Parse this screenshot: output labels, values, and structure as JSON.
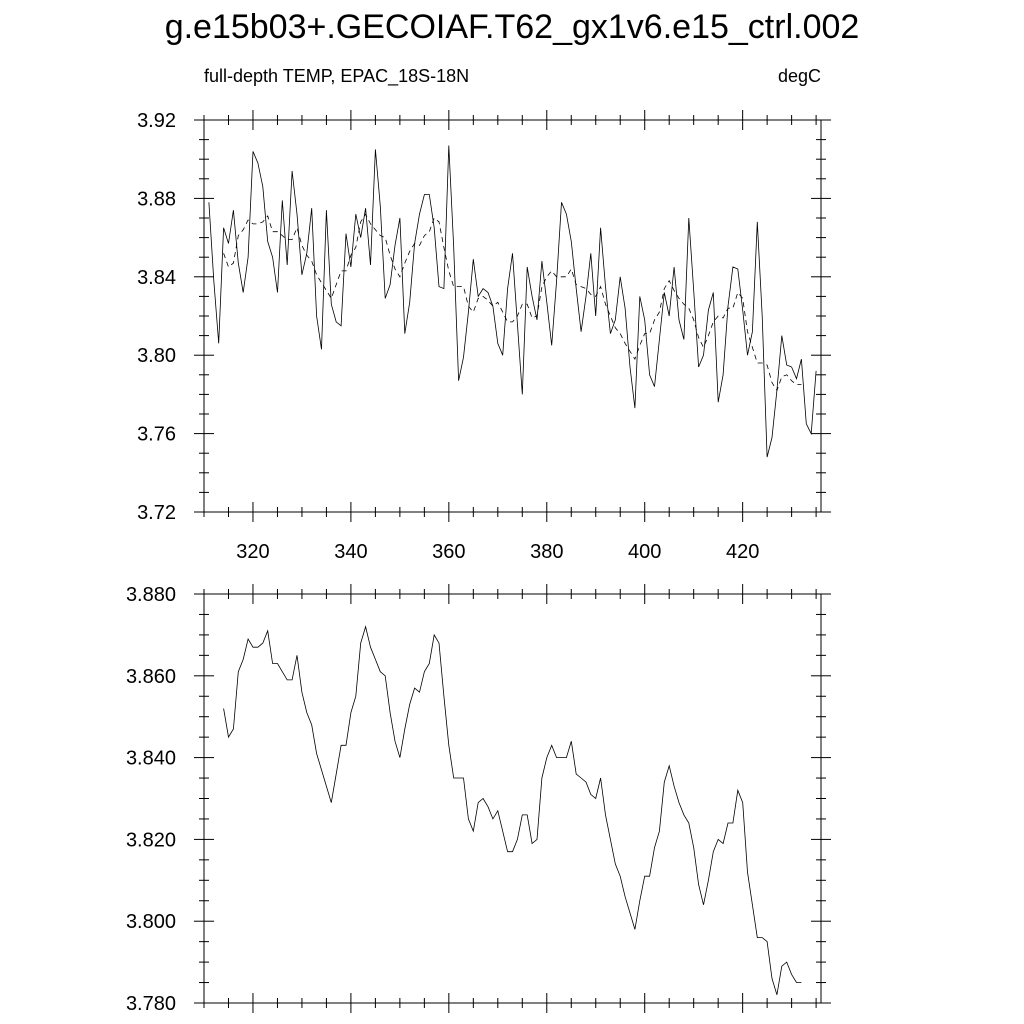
{
  "title": "g.e15b03+.GECOIAF.T62_gx1v6.e15_ctrl.002",
  "chart_data": [
    {
      "type": "line",
      "title": "",
      "subtitle_left": "full-depth TEMP, EPAC_18S-18N",
      "subtitle_right": "degC",
      "xlim": [
        310,
        436
      ],
      "ylim": [
        3.72,
        3.92
      ],
      "xticks": [
        320,
        340,
        360,
        380,
        400,
        420
      ],
      "xtick_labels": [
        "320",
        "340",
        "360",
        "380",
        "400",
        "420"
      ],
      "yticks": [
        3.72,
        3.76,
        3.8,
        3.84,
        3.88,
        3.92
      ],
      "ytick_labels": [
        "3.72",
        "3.76",
        "3.80",
        "3.84",
        "3.88",
        "3.92"
      ],
      "series": [
        {
          "style": "solid",
          "x": [
            311,
            312,
            313,
            314,
            315,
            316,
            317,
            318,
            319,
            320,
            321,
            322,
            323,
            324,
            325,
            326,
            327,
            328,
            329,
            330,
            331,
            332,
            333,
            334,
            335,
            336,
            337,
            338,
            339,
            340,
            341,
            342,
            343,
            344,
            345,
            346,
            347,
            348,
            349,
            350,
            351,
            352,
            353,
            354,
            355,
            356,
            357,
            358,
            359,
            360,
            361,
            362,
            363,
            364,
            365,
            366,
            367,
            368,
            369,
            370,
            371,
            372,
            373,
            374,
            375,
            376,
            377,
            378,
            379,
            380,
            381,
            382,
            383,
            384,
            385,
            386,
            387,
            388,
            389,
            390,
            391,
            392,
            393,
            394,
            395,
            396,
            397,
            398,
            399,
            400,
            401,
            402,
            403,
            404,
            405,
            406,
            407,
            408,
            409,
            410,
            411,
            412,
            413,
            414,
            415,
            416,
            417,
            418,
            419,
            420,
            421,
            422,
            423,
            424,
            425,
            426,
            427,
            428,
            429,
            430,
            431,
            432,
            433,
            434,
            435
          ],
          "y": [
            3.878,
            3.838,
            3.806,
            3.865,
            3.857,
            3.874,
            3.847,
            3.832,
            3.85,
            3.904,
            3.898,
            3.886,
            3.858,
            3.85,
            3.832,
            3.879,
            3.846,
            3.894,
            3.872,
            3.841,
            3.852,
            3.875,
            3.82,
            3.803,
            3.874,
            3.826,
            3.817,
            3.815,
            3.862,
            3.845,
            3.872,
            3.86,
            3.875,
            3.846,
            3.905,
            3.876,
            3.829,
            3.836,
            3.856,
            3.87,
            3.811,
            3.827,
            3.857,
            3.872,
            3.882,
            3.882,
            3.865,
            3.835,
            3.834,
            3.907,
            3.855,
            3.787,
            3.799,
            3.822,
            3.849,
            3.83,
            3.834,
            3.832,
            3.825,
            3.806,
            3.8,
            3.834,
            3.852,
            3.816,
            3.78,
            3.845,
            3.83,
            3.818,
            3.848,
            3.827,
            3.805,
            3.838,
            3.878,
            3.872,
            3.858,
            3.834,
            3.812,
            3.83,
            3.852,
            3.82,
            3.865,
            3.835,
            3.811,
            3.818,
            3.84,
            3.824,
            3.794,
            3.773,
            3.83,
            3.818,
            3.79,
            3.784,
            3.808,
            3.832,
            3.82,
            3.845,
            3.818,
            3.808,
            3.87,
            3.833,
            3.794,
            3.8,
            3.823,
            3.832,
            3.776,
            3.79,
            3.825,
            3.845,
            3.844,
            3.823,
            3.8,
            3.812,
            3.868,
            3.82,
            3.748,
            3.758,
            3.782,
            3.81,
            3.795,
            3.794,
            3.788,
            3.798,
            3.765,
            3.76,
            3.792
          ]
        },
        {
          "style": "dashed",
          "x": [
            314,
            315,
            316,
            317,
            318,
            319,
            320,
            321,
            322,
            323,
            324,
            325,
            326,
            327,
            328,
            329,
            330,
            331,
            332,
            333,
            334,
            335,
            336,
            337,
            338,
            339,
            340,
            341,
            342,
            343,
            344,
            345,
            346,
            347,
            348,
            349,
            350,
            351,
            352,
            353,
            354,
            355,
            356,
            357,
            358,
            359,
            360,
            361,
            362,
            363,
            364,
            365,
            366,
            367,
            368,
            369,
            370,
            371,
            372,
            373,
            374,
            375,
            376,
            377,
            378,
            379,
            380,
            381,
            382,
            383,
            384,
            385,
            386,
            387,
            388,
            389,
            390,
            391,
            392,
            393,
            394,
            395,
            396,
            397,
            398,
            399,
            400,
            401,
            402,
            403,
            404,
            405,
            406,
            407,
            408,
            409,
            410,
            411,
            412,
            413,
            414,
            415,
            416,
            417,
            418,
            419,
            420,
            421,
            422,
            423,
            424,
            425,
            426,
            427,
            428,
            429,
            430,
            431,
            432
          ],
          "y": [
            3.852,
            3.845,
            3.847,
            3.861,
            3.864,
            3.869,
            3.867,
            3.867,
            3.868,
            3.871,
            3.863,
            3.863,
            3.861,
            3.859,
            3.859,
            3.865,
            3.856,
            3.851,
            3.848,
            3.841,
            3.837,
            3.833,
            3.829,
            3.836,
            3.843,
            3.843,
            3.851,
            3.855,
            3.868,
            3.872,
            3.867,
            3.864,
            3.861,
            3.86,
            3.851,
            3.844,
            3.84,
            3.847,
            3.853,
            3.857,
            3.856,
            3.861,
            3.863,
            3.87,
            3.868,
            3.855,
            3.843,
            3.835,
            3.835,
            3.835,
            3.825,
            3.822,
            3.829,
            3.83,
            3.828,
            3.825,
            3.827,
            3.822,
            3.817,
            3.817,
            3.82,
            3.826,
            3.826,
            3.819,
            3.82,
            3.835,
            3.84,
            3.843,
            3.84,
            3.84,
            3.84,
            3.844,
            3.836,
            3.835,
            3.834,
            3.831,
            3.83,
            3.835,
            3.826,
            3.82,
            3.814,
            3.811,
            3.806,
            3.802,
            3.798,
            3.805,
            3.811,
            3.811,
            3.818,
            3.822,
            3.834,
            3.838,
            3.833,
            3.829,
            3.826,
            3.824,
            3.818,
            3.809,
            3.804,
            3.81,
            3.817,
            3.82,
            3.819,
            3.824,
            3.824,
            3.832,
            3.829,
            3.812,
            3.804,
            3.796,
            3.796,
            3.795,
            3.786,
            3.782,
            3.789,
            3.79,
            3.787,
            3.785,
            3.785
          ]
        }
      ]
    },
    {
      "type": "line",
      "title": "",
      "xlim": [
        310,
        436
      ],
      "ylim": [
        3.78,
        3.88
      ],
      "xticks": [
        320,
        340,
        360,
        380,
        400,
        420
      ],
      "yticks": [
        3.78,
        3.8,
        3.82,
        3.84,
        3.86,
        3.88
      ],
      "ytick_labels": [
        "3.780",
        "3.800",
        "3.820",
        "3.840",
        "3.860",
        "3.880"
      ],
      "series": [
        {
          "style": "solid",
          "x": [
            314,
            315,
            316,
            317,
            318,
            319,
            320,
            321,
            322,
            323,
            324,
            325,
            326,
            327,
            328,
            329,
            330,
            331,
            332,
            333,
            334,
            335,
            336,
            337,
            338,
            339,
            340,
            341,
            342,
            343,
            344,
            345,
            346,
            347,
            348,
            349,
            350,
            351,
            352,
            353,
            354,
            355,
            356,
            357,
            358,
            359,
            360,
            361,
            362,
            363,
            364,
            365,
            366,
            367,
            368,
            369,
            370,
            371,
            372,
            373,
            374,
            375,
            376,
            377,
            378,
            379,
            380,
            381,
            382,
            383,
            384,
            385,
            386,
            387,
            388,
            389,
            390,
            391,
            392,
            393,
            394,
            395,
            396,
            397,
            398,
            399,
            400,
            401,
            402,
            403,
            404,
            405,
            406,
            407,
            408,
            409,
            410,
            411,
            412,
            413,
            414,
            415,
            416,
            417,
            418,
            419,
            420,
            421,
            422,
            423,
            424,
            425,
            426,
            427,
            428,
            429,
            430,
            431,
            432
          ],
          "y": [
            3.852,
            3.845,
            3.847,
            3.861,
            3.864,
            3.869,
            3.867,
            3.867,
            3.868,
            3.871,
            3.863,
            3.863,
            3.861,
            3.859,
            3.859,
            3.865,
            3.856,
            3.851,
            3.848,
            3.841,
            3.837,
            3.833,
            3.829,
            3.836,
            3.843,
            3.843,
            3.851,
            3.855,
            3.868,
            3.872,
            3.867,
            3.864,
            3.861,
            3.86,
            3.851,
            3.844,
            3.84,
            3.847,
            3.853,
            3.857,
            3.856,
            3.861,
            3.863,
            3.87,
            3.868,
            3.855,
            3.843,
            3.835,
            3.835,
            3.835,
            3.825,
            3.822,
            3.829,
            3.83,
            3.828,
            3.825,
            3.827,
            3.822,
            3.817,
            3.817,
            3.82,
            3.826,
            3.826,
            3.819,
            3.82,
            3.835,
            3.84,
            3.843,
            3.84,
            3.84,
            3.84,
            3.844,
            3.836,
            3.835,
            3.834,
            3.831,
            3.83,
            3.835,
            3.826,
            3.82,
            3.814,
            3.811,
            3.806,
            3.802,
            3.798,
            3.805,
            3.811,
            3.811,
            3.818,
            3.822,
            3.834,
            3.838,
            3.833,
            3.829,
            3.826,
            3.824,
            3.818,
            3.809,
            3.804,
            3.81,
            3.817,
            3.82,
            3.819,
            3.824,
            3.824,
            3.832,
            3.829,
            3.812,
            3.804,
            3.796,
            3.796,
            3.795,
            3.786,
            3.782,
            3.789,
            3.79,
            3.787,
            3.785,
            3.785
          ]
        }
      ]
    }
  ]
}
